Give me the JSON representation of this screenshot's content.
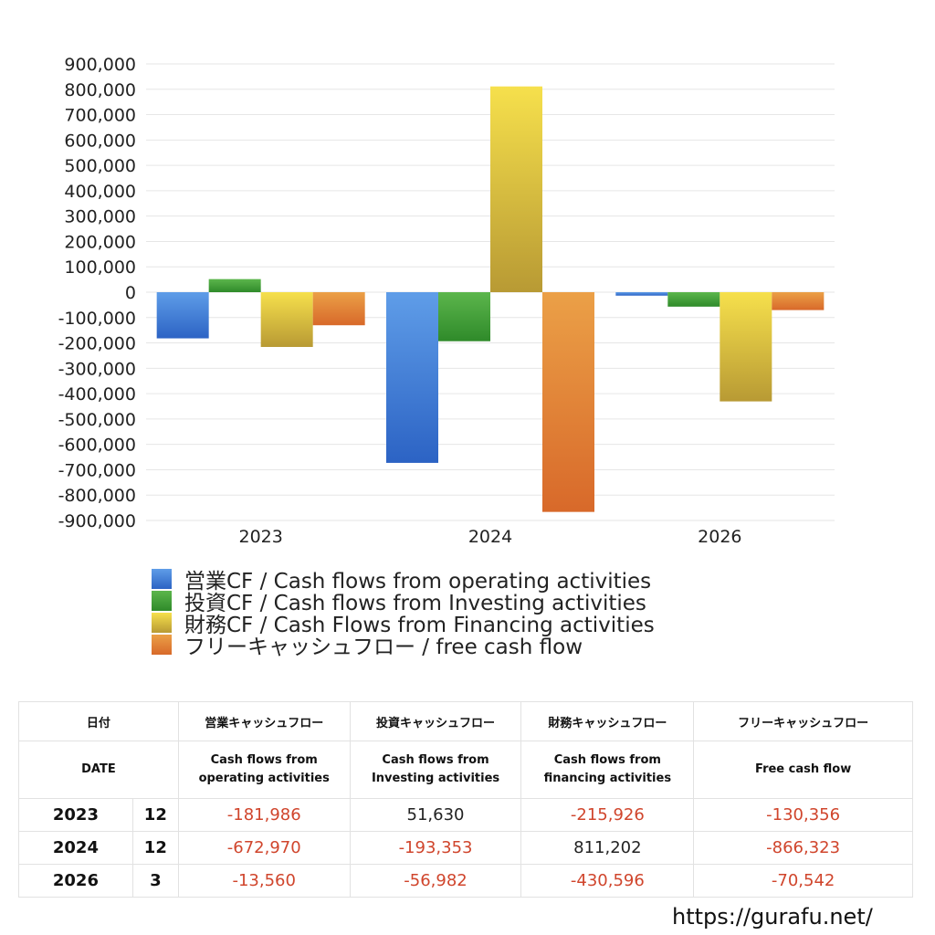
{
  "chart_data": {
    "type": "bar",
    "categories": [
      "2023",
      "2024",
      "2026"
    ],
    "ylim": [
      -900000,
      900000
    ],
    "ytick_step": 100000,
    "grid": true,
    "series": [
      {
        "name": "営業CF / Cash flows from operating activities",
        "values": [
          -181986,
          -672970,
          -13560
        ],
        "color_top": "#5f9de8",
        "color_bottom": "#2c63c4"
      },
      {
        "name": "投資CF / Cash flows from Investing activities",
        "values": [
          51630,
          -193353,
          -56982
        ],
        "color_top": "#5cb64c",
        "color_bottom": "#2f8a2a"
      },
      {
        "name": "財務CF / Cash Flows from Financing activities",
        "values": [
          -215926,
          811202,
          -430596
        ],
        "color_top": "#f6e04c",
        "color_bottom": "#b89a34"
      },
      {
        "name": "フリーキャッシュフロー / free cash flow",
        "values": [
          -130356,
          -866323,
          -70542
        ],
        "color_top": "#eba047",
        "color_bottom": "#d8692a"
      }
    ]
  },
  "table": {
    "header_ja": [
      "日付",
      "営業キャッシュフロー",
      "投資キャッシュフロー",
      "財務キャッシュフロー",
      "フリーキャッシュフロー"
    ],
    "header_en_date": "DATE",
    "header_en": [
      [
        "Cash flows from",
        "operating activities"
      ],
      [
        "Cash flows from",
        "Investing activities"
      ],
      [
        "Cash flows from",
        "financing activities"
      ],
      [
        "Free cash flow",
        ""
      ]
    ],
    "rows": [
      {
        "year": "2023",
        "month": "12",
        "values": [
          "-181,986",
          "51,630",
          "-215,926",
          "-130,356"
        ]
      },
      {
        "year": "2024",
        "month": "12",
        "values": [
          "-672,970",
          "-193,353",
          "811,202",
          "-866,323"
        ]
      },
      {
        "year": "2026",
        "month": "3",
        "values": [
          "-13,560",
          "-56,982",
          "-430,596",
          "-70,542"
        ]
      }
    ]
  },
  "footer": {
    "url": "https://gurafu.net/"
  }
}
